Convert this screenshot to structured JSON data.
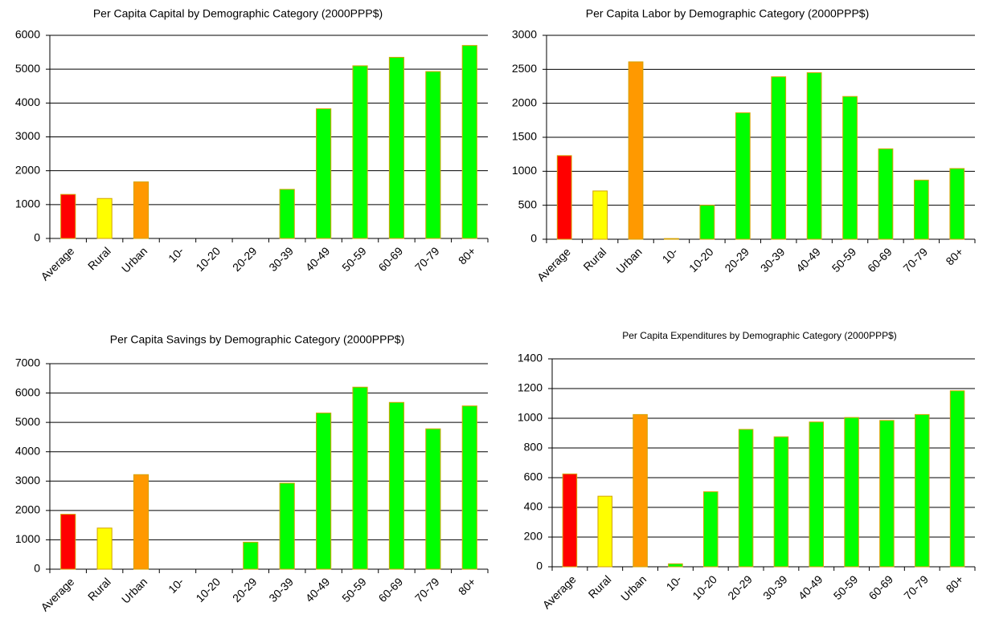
{
  "chart_data": [
    {
      "type": "bar",
      "title": "Per Capita Capital by Demographic Category (2000PPP$)",
      "categories": [
        "Average",
        "Rural",
        "Urban",
        "10-",
        "10-20",
        "20-29",
        "30-39",
        "40-49",
        "50-59",
        "60-69",
        "70-79",
        "80+"
      ],
      "values": [
        1300,
        1180,
        1670,
        0,
        0,
        0,
        1450,
        3830,
        5100,
        5350,
        4930,
        5700
      ],
      "colors": [
        "#ff0000",
        "#ffff00",
        "#ff9900",
        "#00ff00",
        "#00ff00",
        "#00ff00",
        "#00ff00",
        "#00ff00",
        "#00ff00",
        "#00ff00",
        "#00ff00",
        "#00ff00"
      ],
      "ylim": [
        0,
        6000
      ],
      "yticks": [
        0,
        1000,
        2000,
        3000,
        4000,
        5000,
        6000
      ],
      "grid": true
    },
    {
      "type": "bar",
      "title": "Per Capita Labor by Demographic Category (2000PPP$)",
      "categories": [
        "Average",
        "Rural",
        "Urban",
        "10-",
        "10-20",
        "20-29",
        "30-39",
        "40-49",
        "50-59",
        "60-69",
        "70-79",
        "80+"
      ],
      "values": [
        1230,
        710,
        2610,
        10,
        500,
        1860,
        2390,
        2450,
        2100,
        1330,
        870,
        1040
      ],
      "colors": [
        "#ff0000",
        "#ffff00",
        "#ff9900",
        "#00ff00",
        "#00ff00",
        "#00ff00",
        "#00ff00",
        "#00ff00",
        "#00ff00",
        "#00ff00",
        "#00ff00",
        "#00ff00"
      ],
      "ylim": [
        0,
        3000
      ],
      "yticks": [
        0,
        500,
        1000,
        1500,
        2000,
        2500,
        3000
      ],
      "grid": true
    },
    {
      "type": "bar",
      "title": "Per Capita Savings by Demographic Category (2000PPP$)",
      "categories": [
        "Average",
        "Rural",
        "Urban",
        "10-",
        "10-20",
        "20-29",
        "30-39",
        "40-49",
        "50-59",
        "60-69",
        "70-79",
        "80+"
      ],
      "values": [
        1870,
        1400,
        3220,
        0,
        0,
        920,
        2930,
        5320,
        6200,
        5680,
        4780,
        5560
      ],
      "colors": [
        "#ff0000",
        "#ffff00",
        "#ff9900",
        "#00ff00",
        "#00ff00",
        "#00ff00",
        "#00ff00",
        "#00ff00",
        "#00ff00",
        "#00ff00",
        "#00ff00",
        "#00ff00"
      ],
      "ylim": [
        0,
        7000
      ],
      "yticks": [
        0,
        1000,
        2000,
        3000,
        4000,
        5000,
        6000,
        7000
      ],
      "grid": true
    },
    {
      "type": "bar",
      "title": "Per Capita Expenditures by Demographic Category (2000PPP$)",
      "categories": [
        "Average",
        "Rural",
        "Urban",
        "10-",
        "10-20",
        "20-29",
        "30-39",
        "40-49",
        "50-59",
        "60-69",
        "70-79",
        "80+"
      ],
      "values": [
        625,
        475,
        1025,
        20,
        505,
        925,
        875,
        975,
        1005,
        985,
        1025,
        1185
      ],
      "colors": [
        "#ff0000",
        "#ffff00",
        "#ff9900",
        "#00ff00",
        "#00ff00",
        "#00ff00",
        "#00ff00",
        "#00ff00",
        "#00ff00",
        "#00ff00",
        "#00ff00",
        "#00ff00"
      ],
      "ylim": [
        0,
        1400
      ],
      "yticks": [
        0,
        200,
        400,
        600,
        800,
        1000,
        1200,
        1400
      ],
      "grid": true
    }
  ]
}
